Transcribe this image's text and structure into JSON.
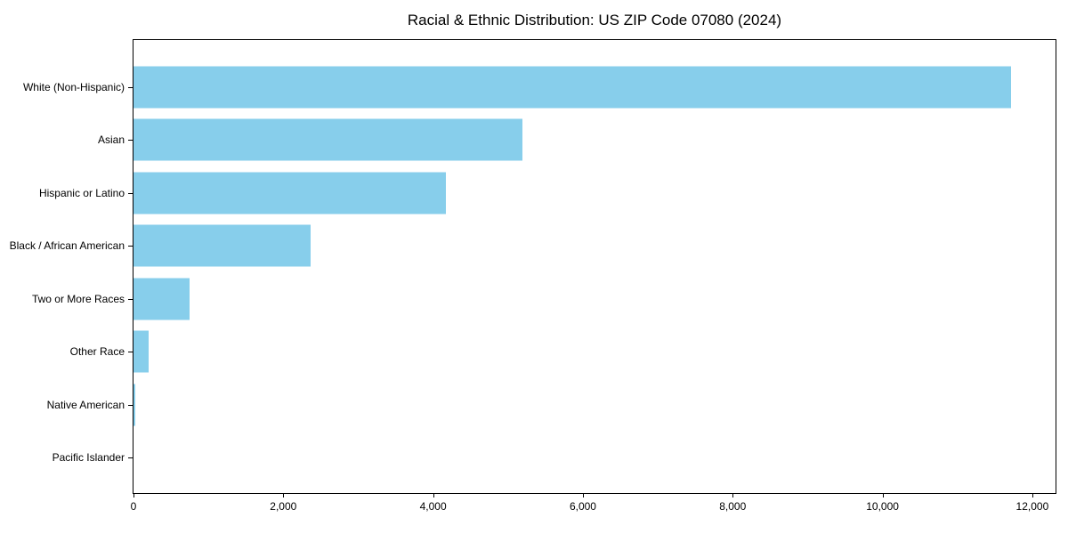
{
  "title": "Racial & Ethnic Distribution: US ZIP Code 07080 (2024)",
  "colors": {
    "bar": "#87CEEB",
    "axis": "#000000",
    "text": "#000000",
    "background": "#ffffff"
  },
  "chart_data": {
    "type": "bar",
    "orientation": "horizontal",
    "title": "Racial & Ethnic Distribution: US ZIP Code 07080 (2024)",
    "categories": [
      "White (Non-Hispanic)",
      "Asian",
      "Hispanic or Latino",
      "Black / African American",
      "Two or More Races",
      "Other Race",
      "Native American",
      "Pacific Islander"
    ],
    "values": [
      11720,
      5190,
      4170,
      2370,
      745,
      200,
      20,
      0
    ],
    "xlabel": "",
    "ylabel": "",
    "xlim": [
      0,
      12310
    ],
    "x_ticks": [
      0,
      2000,
      4000,
      6000,
      8000,
      10000,
      12000
    ],
    "x_tick_labels": [
      "0",
      "2,000",
      "4,000",
      "6,000",
      "8,000",
      "10,000",
      "12,000"
    ],
    "grid": false,
    "legend": null,
    "bar_color": "#87CEEB"
  }
}
